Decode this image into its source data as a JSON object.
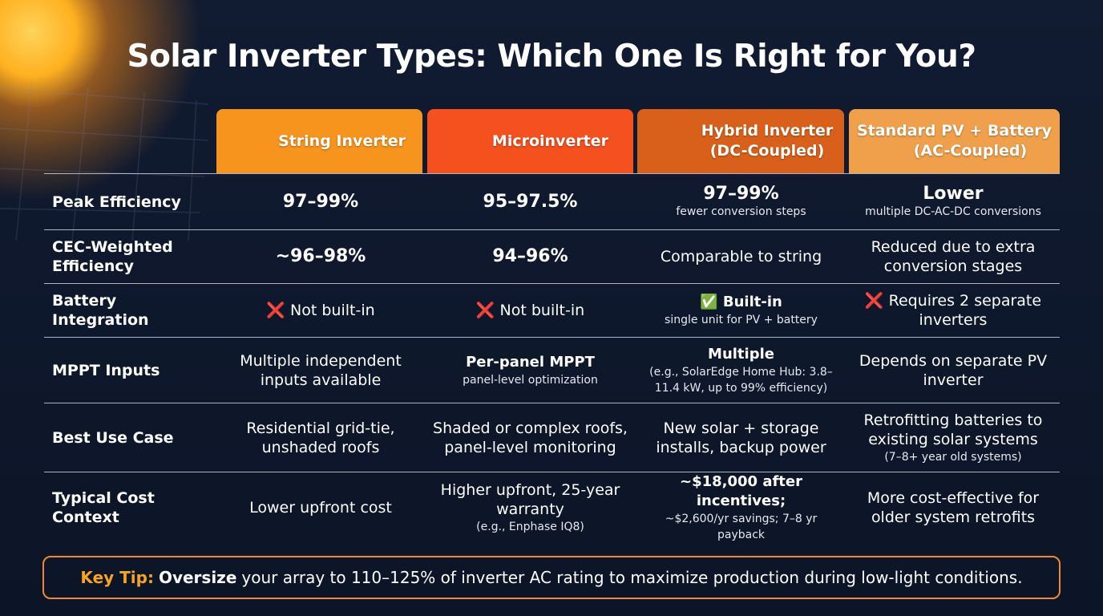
{
  "header": {
    "title": "Solar Inverter Types: Which One Is Right for You?"
  },
  "table": {
    "columns": [
      [
        "String Inverter"
      ],
      [
        "Microinverter"
      ],
      [
        "Hybrid Inverter",
        "(DC-Coupled)"
      ],
      [
        "Standard PV + Battery",
        "(AC-Coupled)"
      ]
    ],
    "rows": [
      {
        "label": [
          "Peak Efficiency"
        ],
        "cells": [
          {
            "main": "97–99%"
          },
          {
            "main": "95–97.5%"
          },
          {
            "main": "97–99%",
            "sub": "fewer conversion steps"
          },
          {
            "main": "Lower",
            "sub": "multiple DC-AC-DC conversions"
          }
        ]
      },
      {
        "label": [
          "CEC-Weighted",
          "Efficiency"
        ],
        "cells": [
          {
            "main": "~96–98%"
          },
          {
            "main": "94–96%"
          },
          {
            "main": "Comparable to string"
          },
          {
            "main": "Reduced due to extra conversion stages"
          }
        ]
      },
      {
        "label": [
          "Battery Integration"
        ],
        "cells": [
          {
            "main": "❌ Not built-in"
          },
          {
            "main": "❌ Not built-in"
          },
          {
            "main": "✅ Built-in",
            "sub": "single unit for PV + battery"
          },
          {
            "main": "❌ Requires 2 separate inverters"
          }
        ]
      },
      {
        "label": [
          "MPPT Inputs"
        ],
        "cells": [
          {
            "main": "Multiple independent inputs available"
          },
          {
            "main": "Per-panel MPPT",
            "sub": "panel-level optimization"
          },
          {
            "main": "Multiple",
            "sub": "(e.g., SolarEdge Home Hub: 3.8–11.4 kW, up to 99% efficiency)"
          },
          {
            "main": "Depends on separate PV inverter"
          }
        ]
      },
      {
        "label": [
          "Best Use Case"
        ],
        "cells": [
          {
            "main": "Residential grid-tie, unshaded roofs"
          },
          {
            "main": "Shaded or complex roofs, panel-level monitoring"
          },
          {
            "main": "New solar + storage installs, backup power"
          },
          {
            "main": "Retrofitting batteries to existing solar systems",
            "sub": "(7–8+ year old systems)"
          }
        ]
      },
      {
        "label": [
          "Typical Cost",
          "Context"
        ],
        "cells": [
          {
            "main": "Lower upfront cost"
          },
          {
            "main": "Higher upfront, 25-year warranty",
            "sub": "(e.g., Enphase IQ8)"
          },
          {
            "main": "~$18,000 after incentives;",
            "sub": "~$2,600/yr savings; 7–8 yr payback"
          },
          {
            "main": "More cost-effective for older system retrofits"
          }
        ]
      }
    ]
  },
  "tip": {
    "label": "Key Tip:",
    "emphasis": "Oversize",
    "text": "your array to 110–125% of inverter AC rating to maximize production during low-light conditions."
  }
}
